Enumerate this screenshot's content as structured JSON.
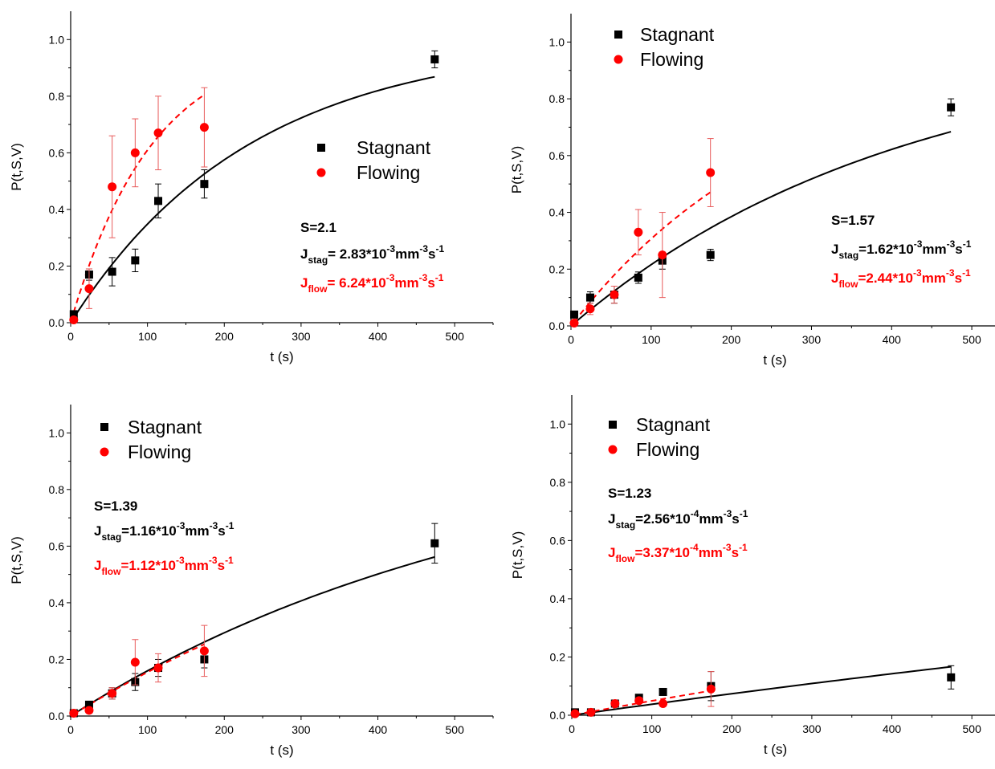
{
  "chart_data": [
    {
      "type": "scatter",
      "xlabel": "t (s)",
      "ylabel": "P(t,S,V)",
      "xlim": [
        0,
        550
      ],
      "ylim": [
        0,
        1.1
      ],
      "xticks": [
        0,
        100,
        200,
        300,
        400,
        500
      ],
      "yticks": [
        0.0,
        0.2,
        0.4,
        0.6,
        0.8,
        1.0
      ],
      "legend_placement": "center-right",
      "legend": [
        {
          "label": "Stagnant",
          "color": "#000000",
          "marker": "square"
        },
        {
          "label": "Flowing",
          "color": "#ff0000",
          "marker": "circle"
        }
      ],
      "annotations": {
        "s": "S=2.1",
        "jstag": {
          "main": "J",
          "sub": "stag",
          "text": "= 2.83*10",
          "exp": "-3",
          "unit": "mm",
          "unit_exp": "-3",
          "tail": "s",
          "tail_exp": "-1"
        },
        "jflow": {
          "main": "J",
          "sub": "flow",
          "text": "= 6.24*10",
          "exp": "-3",
          "unit": "mm",
          "unit_exp": "-3",
          "tail": "s",
          "tail_exp": "-1"
        }
      },
      "series": [
        {
          "name": "Stagnant",
          "color": "#000000",
          "marker": "square",
          "x": [
            4,
            24,
            54,
            84,
            114,
            174,
            474
          ],
          "y": [
            0.03,
            0.17,
            0.18,
            0.22,
            0.43,
            0.49,
            0.93
          ],
          "err": [
            0.01,
            0.02,
            0.05,
            0.04,
            0.06,
            0.05,
            0.03
          ],
          "fit": {
            "style": "solid",
            "rate": 0.00428,
            "x_range": [
              4,
              474
            ]
          }
        },
        {
          "name": "Flowing",
          "color": "#ff0000",
          "marker": "circle",
          "x": [
            4,
            24,
            54,
            84,
            114,
            174
          ],
          "y": [
            0.01,
            0.12,
            0.48,
            0.6,
            0.67,
            0.69
          ],
          "err": [
            0.01,
            0.07,
            0.18,
            0.12,
            0.13,
            0.14
          ],
          "fit": {
            "style": "dashed",
            "rate": 0.0094,
            "x_range": [
              4,
              174
            ]
          }
        }
      ]
    },
    {
      "type": "scatter",
      "xlabel": "t (s)",
      "ylabel": "P(t,S,V)",
      "xlim": [
        0,
        550
      ],
      "ylim": [
        0,
        1.1
      ],
      "xticks": [
        0,
        100,
        200,
        300,
        400,
        500
      ],
      "yticks": [
        0.0,
        0.2,
        0.4,
        0.6,
        0.8,
        1.0
      ],
      "legend_placement": "top-left",
      "legend": [
        {
          "label": "Stagnant",
          "color": "#000000",
          "marker": "square"
        },
        {
          "label": "Flowing",
          "color": "#ff0000",
          "marker": "circle"
        }
      ],
      "annotations": {
        "s": "S=1.57",
        "jstag": {
          "main": "J",
          "sub": "stag",
          "text": "=1.62*10",
          "exp": "-3",
          "unit": "mm",
          "unit_exp": "-3",
          "tail": "s",
          "tail_exp": "-1"
        },
        "jflow": {
          "main": "J",
          "sub": "flow",
          "text": "=2.44*10",
          "exp": "-3",
          "unit": "mm",
          "unit_exp": "-3",
          "tail": "s",
          "tail_exp": "-1"
        }
      },
      "series": [
        {
          "name": "Stagnant",
          "color": "#000000",
          "marker": "square",
          "x": [
            4,
            24,
            54,
            84,
            114,
            174,
            474
          ],
          "y": [
            0.04,
            0.1,
            0.11,
            0.17,
            0.23,
            0.25,
            0.77
          ],
          "err": [
            0.01,
            0.02,
            0.03,
            0.02,
            0.03,
            0.02,
            0.03
          ],
          "fit": {
            "style": "solid",
            "rate": 0.00243,
            "x_range": [
              4,
              474
            ]
          }
        },
        {
          "name": "Flowing",
          "color": "#ff0000",
          "marker": "circle",
          "x": [
            4,
            24,
            54,
            84,
            114,
            174
          ],
          "y": [
            0.01,
            0.06,
            0.11,
            0.33,
            0.25,
            0.54
          ],
          "err": [
            0.01,
            0.02,
            0.03,
            0.08,
            0.15,
            0.12
          ],
          "fit": {
            "style": "dashed",
            "rate": 0.00366,
            "x_range": [
              4,
              174
            ]
          }
        }
      ]
    },
    {
      "type": "scatter",
      "xlabel": "t (s)",
      "ylabel": "P(t,S,V)",
      "xlim": [
        0,
        550
      ],
      "ylim": [
        0,
        1.1
      ],
      "xticks": [
        0,
        100,
        200,
        300,
        400,
        500
      ],
      "yticks": [
        0.0,
        0.2,
        0.4,
        0.6,
        0.8,
        1.0
      ],
      "legend_placement": "top-left",
      "legend": [
        {
          "label": "Stagnant",
          "color": "#000000",
          "marker": "square"
        },
        {
          "label": "Flowing",
          "color": "#ff0000",
          "marker": "circle"
        }
      ],
      "annotations": {
        "s": "S=1.39",
        "jstag": {
          "main": "J",
          "sub": "stag",
          "text": "=1.16*10",
          "exp": "-3",
          "unit": "mm",
          "unit_exp": "-3",
          "tail": "s",
          "tail_exp": "-1"
        },
        "jflow": {
          "main": "J",
          "sub": "flow",
          "text": "=1.12*10",
          "exp": "-3",
          "unit": "mm",
          "unit_exp": "-3",
          "tail": "s",
          "tail_exp": "-1"
        }
      },
      "series": [
        {
          "name": "Stagnant",
          "color": "#000000",
          "marker": "square",
          "x": [
            4,
            24,
            54,
            84,
            114,
            174,
            474
          ],
          "y": [
            0.01,
            0.04,
            0.08,
            0.12,
            0.17,
            0.2,
            0.61
          ],
          "err": [
            0.01,
            0.01,
            0.02,
            0.03,
            0.03,
            0.03,
            0.07
          ],
          "fit": {
            "style": "solid",
            "rate": 0.00174,
            "x_range": [
              4,
              474
            ]
          }
        },
        {
          "name": "Flowing",
          "color": "#ff0000",
          "marker": "circle",
          "x": [
            4,
            24,
            54,
            84,
            114,
            174
          ],
          "y": [
            0.01,
            0.02,
            0.08,
            0.19,
            0.17,
            0.23
          ],
          "err": [
            0.01,
            0.01,
            0.02,
            0.08,
            0.05,
            0.09
          ],
          "fit": {
            "style": "dashed",
            "rate": 0.00168,
            "x_range": [
              4,
              174
            ]
          }
        }
      ]
    },
    {
      "type": "scatter",
      "xlabel": "t (s)",
      "ylabel": "P(t,S,V)",
      "xlim": [
        0,
        550
      ],
      "ylim": [
        0,
        1.1
      ],
      "xticks": [
        0,
        100,
        200,
        300,
        400,
        500
      ],
      "yticks": [
        0.0,
        0.2,
        0.4,
        0.6,
        0.8,
        1.0
      ],
      "legend_placement": "top-left",
      "legend": [
        {
          "label": "Stagnant",
          "color": "#000000",
          "marker": "square"
        },
        {
          "label": "Flowing",
          "color": "#ff0000",
          "marker": "circle"
        }
      ],
      "annotations": {
        "s": "S=1.23",
        "jstag": {
          "main": "J",
          "sub": "stag",
          "text": "=2.56*10",
          "exp": "-4",
          "unit": "mm",
          "unit_exp": "-3",
          "tail": "s",
          "tail_exp": "-1"
        },
        "jflow": {
          "main": "J",
          "sub": "flow",
          "text": "=3.37*10",
          "exp": "-4",
          "unit": "mm",
          "unit_exp": "-3",
          "tail": "s",
          "tail_exp": "-1"
        }
      },
      "series": [
        {
          "name": "Stagnant",
          "color": "#000000",
          "marker": "square",
          "x": [
            4,
            24,
            54,
            84,
            114,
            174,
            474
          ],
          "y": [
            0.01,
            0.01,
            0.04,
            0.06,
            0.08,
            0.1,
            0.13
          ],
          "err": [
            0.005,
            0.01,
            0.01,
            0.01,
            0.01,
            0.05,
            0.04
          ],
          "fit": {
            "style": "solid",
            "rate": 0.000384,
            "x_range": [
              4,
              474
            ]
          }
        },
        {
          "name": "Flowing",
          "color": "#ff0000",
          "marker": "circle",
          "x": [
            4,
            24,
            54,
            84,
            114,
            174
          ],
          "y": [
            0.005,
            0.01,
            0.04,
            0.05,
            0.04,
            0.09
          ],
          "err": [
            0.005,
            0.01,
            0.01,
            0.01,
            0.01,
            0.06
          ],
          "fit": {
            "style": "dashed",
            "rate": 0.000506,
            "x_range": [
              4,
              174
            ]
          }
        }
      ]
    }
  ]
}
